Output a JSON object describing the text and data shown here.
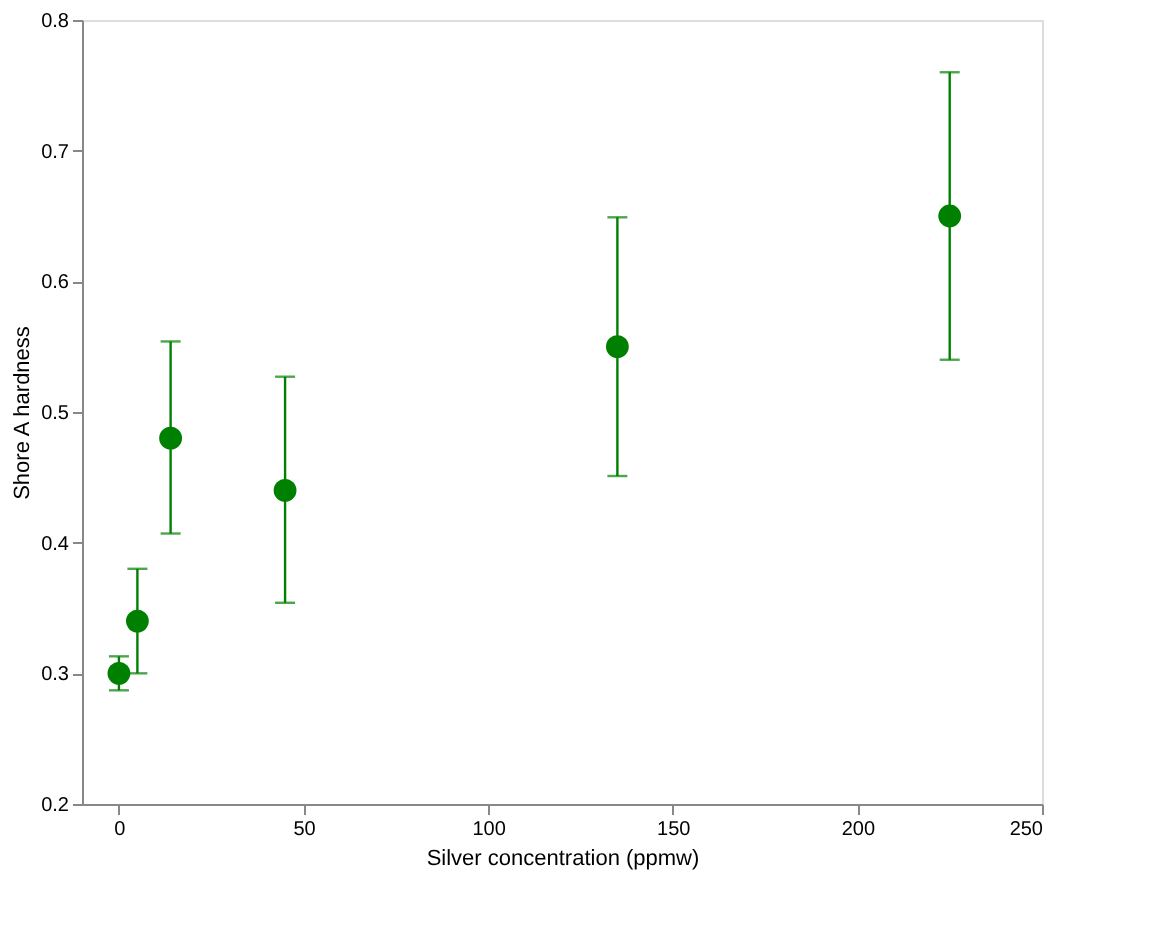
{
  "chart_data": {
    "type": "scatter",
    "xlabel": "Silver concentration (ppmw)",
    "ylabel": "Shore A hardness",
    "x": [
      0,
      5,
      14,
      45,
      135,
      225
    ],
    "series": [
      {
        "color": "#008000",
        "values": [
          0.3,
          0.34,
          0.48,
          0.44,
          0.55,
          0.65
        ],
        "errors": [
          [
            0.287,
            0.313
          ],
          [
            0.3,
            0.38
          ],
          [
            0.407,
            0.554
          ],
          [
            0.354,
            0.527
          ],
          [
            0.451,
            0.649
          ],
          [
            0.54,
            0.76
          ]
        ]
      }
    ],
    "xlim": [
      -10,
      250
    ],
    "xticks": [
      0,
      50,
      100,
      150,
      200,
      250
    ],
    "ylim": [
      0.2,
      0.8
    ],
    "yticks": [
      0.2,
      0.3,
      0.4,
      0.5,
      0.6,
      0.7,
      0.8
    ],
    "marker": "circle",
    "grid": false
  }
}
